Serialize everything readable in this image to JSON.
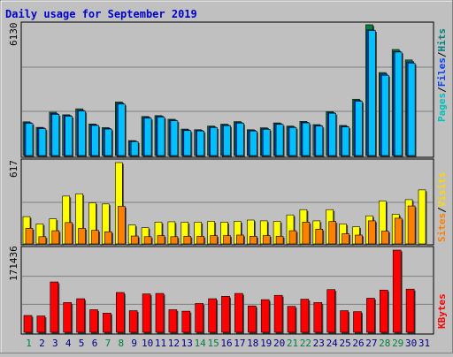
{
  "chart_data": [
    {
      "type": "bar",
      "title": "Daily usage for September 2019",
      "categories": [
        "1",
        "2",
        "3",
        "4",
        "5",
        "6",
        "7",
        "8",
        "9",
        "10",
        "11",
        "12",
        "13",
        "14",
        "15",
        "16",
        "17",
        "18",
        "19",
        "20",
        "21",
        "22",
        "23",
        "24",
        "25",
        "26",
        "27",
        "28",
        "29",
        "30",
        "31"
      ],
      "weekend_days": [
        "1",
        "7",
        "8",
        "14",
        "15",
        "21",
        "22",
        "28",
        "29"
      ],
      "ymax_label": "6130",
      "ymax": 6130,
      "series": [
        {
          "name": "Hits",
          "color": "#008040",
          "values": [
            1580,
            1320,
            2030,
            1910,
            2190,
            1480,
            1310,
            2510,
            700,
            1830,
            1870,
            1700,
            1240,
            1210,
            1380,
            1470,
            1590,
            1210,
            1300,
            1530,
            1380,
            1600,
            1450,
            2060,
            1410,
            2640,
            6130,
            3890,
            4970,
            4480,
            0
          ]
        },
        {
          "name": "Files",
          "color": "#0040FF",
          "values": [
            1540,
            1290,
            1970,
            1880,
            2120,
            1440,
            1270,
            2450,
            670,
            1790,
            1840,
            1660,
            1200,
            1180,
            1340,
            1430,
            1550,
            1180,
            1260,
            1490,
            1340,
            1560,
            1410,
            2010,
            1370,
            2580,
            5890,
            3820,
            4880,
            4390,
            0
          ]
        },
        {
          "name": "Pages",
          "color": "#00C0FF",
          "values": [
            1510,
            1260,
            1930,
            1840,
            2080,
            1410,
            1240,
            2410,
            650,
            1750,
            1800,
            1630,
            1170,
            1150,
            1310,
            1400,
            1520,
            1150,
            1230,
            1460,
            1310,
            1530,
            1380,
            1980,
            1340,
            2540,
            5860,
            3760,
            4850,
            4330,
            0
          ]
        }
      ]
    },
    {
      "type": "bar",
      "ymax_label": "617",
      "ymax": 617,
      "series": [
        {
          "name": "Visits",
          "color": "#FFFF00",
          "values": [
            207,
            152,
            190,
            363,
            380,
            312,
            303,
            617,
            143,
            123,
            165,
            168,
            165,
            165,
            171,
            165,
            171,
            181,
            175,
            171,
            220,
            260,
            175,
            260,
            152,
            130,
            213,
            326,
            225,
            336,
            410
          ]
        },
        {
          "name": "Sites",
          "color": "#FF8000",
          "values": [
            118,
            55,
            100,
            162,
            118,
            103,
            92,
            285,
            60,
            55,
            63,
            55,
            58,
            58,
            63,
            63,
            67,
            58,
            63,
            58,
            100,
            165,
            112,
            170,
            77,
            67,
            175,
            97,
            195,
            288,
            0
          ]
        }
      ]
    },
    {
      "type": "bar",
      "ymax_label": "171436",
      "ymax": 171436,
      "series": [
        {
          "name": "KBytes",
          "color": "#FF0000",
          "values": [
            35000,
            34000,
            105000,
            62000,
            70000,
            47000,
            40000,
            83000,
            45000,
            80000,
            81000,
            47000,
            44000,
            60000,
            70000,
            75000,
            81000,
            55000,
            68000,
            77000,
            54000,
            69000,
            62000,
            89000,
            45000,
            43000,
            71000,
            88000,
            171436,
            90000,
            0
          ]
        }
      ]
    }
  ],
  "legend": {
    "top": [
      {
        "text": "Pages",
        "color": "#00C0C0"
      },
      {
        "text": "/",
        "color": "#000000"
      },
      {
        "text": "Files",
        "color": "#0040FF"
      },
      {
        "text": "/",
        "color": "#000000"
      },
      {
        "text": "Hits",
        "color": "#008080"
      }
    ],
    "mid": [
      {
        "text": "Sites",
        "color": "#FF8000"
      },
      {
        "text": "/",
        "color": "#000000"
      },
      {
        "text": "Visits",
        "color": "#FFD700"
      }
    ],
    "bottom": [
      {
        "text": "KBytes",
        "color": "#FF0000"
      }
    ]
  },
  "colors": {
    "title": "#0000CC",
    "weekday_label": "#000080",
    "weekend_label": "#008040",
    "plot_bg": "#C0C0C0",
    "page_bg": "#C0C0C0"
  }
}
